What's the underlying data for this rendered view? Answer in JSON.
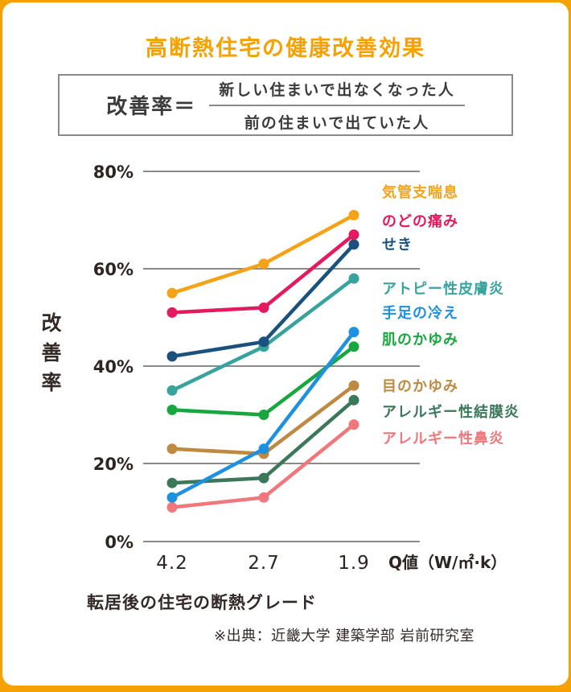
{
  "title": "高断熱住宅の健康改善効果",
  "formula": {
    "label": "改善率＝",
    "numerator": "新しい住まいで出なくなった人",
    "denominator": "前の住まいで出ていた人"
  },
  "chart_data": {
    "type": "line",
    "x": [
      4.2,
      2.7,
      1.9
    ],
    "x_tick_labels": [
      "4.2",
      "2.7",
      "1.9"
    ],
    "x_axis_unit": "Q値（W/㎡·k）",
    "xlabel": "転居後の住宅の断熱グレード",
    "ylabel": "改善率",
    "y_ticks": [
      "80%",
      "60%",
      "40%",
      "20%",
      "0%"
    ],
    "y_tick_values": [
      80,
      60,
      40,
      20,
      0
    ],
    "ylim": [
      0,
      80
    ],
    "grid": true,
    "legend_position": "right",
    "series": [
      {
        "name": "気管支喘息",
        "color": "#F4A318",
        "values": [
          55,
          61,
          71
        ]
      },
      {
        "name": "のどの痛み",
        "color": "#E31A5F",
        "values": [
          51,
          52,
          67
        ]
      },
      {
        "name": "せき",
        "color": "#1A527D",
        "values": [
          42,
          45,
          65
        ]
      },
      {
        "name": "アトピー性皮膚炎",
        "color": "#38A39D",
        "values": [
          35,
          44,
          58
        ]
      },
      {
        "name": "手足の冷え",
        "color": "#1E90E0",
        "values": [
          13,
          23,
          47
        ]
      },
      {
        "name": "肌のかゆみ",
        "color": "#18A73F",
        "values": [
          31,
          30,
          44
        ]
      },
      {
        "name": "目のかゆみ",
        "color": "#BE8A42",
        "values": [
          23,
          22,
          36
        ]
      },
      {
        "name": "アレルギー性結膜炎",
        "color": "#3B7759",
        "values": [
          16,
          17,
          33
        ]
      },
      {
        "name": "アレルギー性鼻炎",
        "color": "#F0777B",
        "values": [
          11,
          13,
          28
        ]
      }
    ]
  },
  "footer": {
    "source": "※出典：近畿大学 建築学部 岩前研究室"
  },
  "colors": {
    "accent": "#F5A100",
    "grid": "#8A8A8A",
    "text_dark": "#332A27"
  }
}
